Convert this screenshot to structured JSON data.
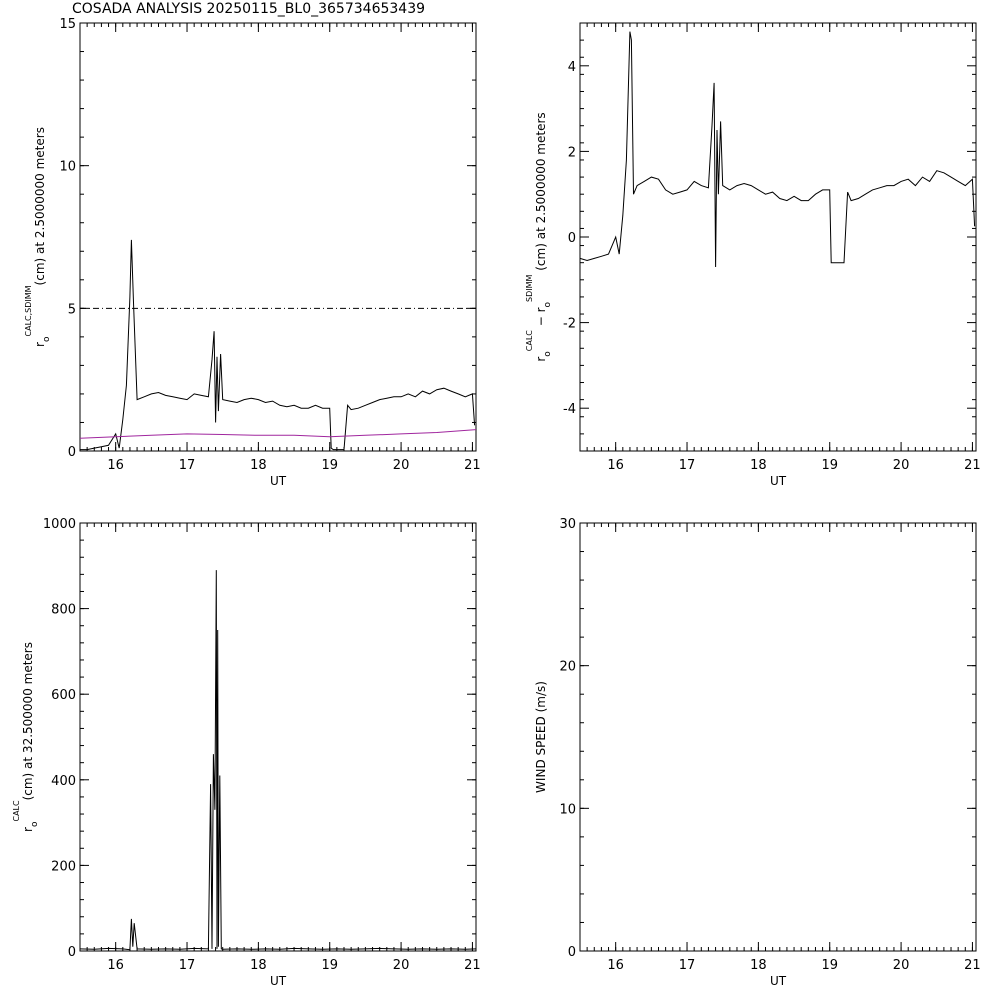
{
  "title": "COSADA ANALYSIS 20250115_BL0_365734653439",
  "colors": {
    "axis": "#000000",
    "series": "#000000",
    "secondary": "#a0269e",
    "background": "#ffffff"
  },
  "chart_data": [
    {
      "type": "line",
      "title": "",
      "xlabel": "UT",
      "ylabel_parts": [
        "r",
        "o",
        "CALC,SDIMM",
        "(cm)  at  2.5000000 meters"
      ],
      "xlim": [
        15.5,
        21.05
      ],
      "ylim": [
        0,
        15
      ],
      "xticks": [
        16,
        17,
        18,
        19,
        20,
        21
      ],
      "yticks": [
        0,
        5,
        10,
        15
      ],
      "grid": false,
      "reference_line": {
        "y": 5,
        "style": "dash-dot"
      },
      "series": [
        {
          "color": "#000000",
          "x": [
            15.5,
            15.6,
            15.7,
            15.8,
            15.9,
            16.0,
            16.05,
            16.1,
            16.15,
            16.2,
            16.22,
            16.25,
            16.3,
            16.4,
            16.5,
            16.6,
            16.7,
            16.8,
            16.9,
            17.0,
            17.1,
            17.2,
            17.3,
            17.35,
            17.38,
            17.4,
            17.42,
            17.44,
            17.47,
            17.5,
            17.6,
            17.7,
            17.8,
            17.9,
            18.0,
            18.1,
            18.2,
            18.3,
            18.4,
            18.5,
            18.6,
            18.7,
            18.8,
            18.9,
            19.0,
            19.02,
            19.05,
            19.1,
            19.2,
            19.25,
            19.3,
            19.4,
            19.5,
            19.6,
            19.7,
            19.8,
            19.9,
            20.0,
            20.1,
            20.2,
            20.3,
            20.4,
            20.5,
            20.6,
            20.7,
            20.8,
            20.9,
            21.0,
            21.03
          ],
          "values": [
            0.05,
            0.05,
            0.1,
            0.15,
            0.2,
            0.6,
            0.1,
            1.1,
            2.3,
            5.4,
            7.4,
            5.2,
            1.8,
            1.9,
            2.0,
            2.05,
            1.95,
            1.9,
            1.85,
            1.8,
            2.0,
            1.95,
            1.9,
            3.2,
            4.2,
            1.0,
            3.3,
            1.4,
            3.4,
            1.8,
            1.75,
            1.7,
            1.8,
            1.85,
            1.8,
            1.7,
            1.75,
            1.6,
            1.55,
            1.6,
            1.5,
            1.5,
            1.6,
            1.5,
            1.5,
            0.1,
            0.05,
            0.05,
            0.05,
            1.6,
            1.45,
            1.5,
            1.6,
            1.7,
            1.8,
            1.85,
            1.9,
            1.9,
            2.0,
            1.9,
            2.1,
            2.0,
            2.15,
            2.2,
            2.1,
            2.0,
            1.9,
            2.0,
            0.9
          ]
        },
        {
          "color": "#a0269e",
          "x": [
            15.5,
            16.0,
            16.5,
            17.0,
            17.5,
            18.0,
            18.5,
            19.0,
            19.5,
            20.0,
            20.5,
            21.05
          ],
          "values": [
            0.45,
            0.5,
            0.55,
            0.6,
            0.58,
            0.55,
            0.55,
            0.5,
            0.55,
            0.6,
            0.65,
            0.75
          ]
        }
      ]
    },
    {
      "type": "line",
      "title": "",
      "xlabel": "UT",
      "ylabel_parts": [
        "r",
        "o",
        "CALC",
        "  −  r",
        "o",
        "SDIMM",
        " (cm)  at  2.5000000 meters"
      ],
      "xlim": [
        15.5,
        21.05
      ],
      "ylim": [
        -5,
        5
      ],
      "xticks": [
        16,
        17,
        18,
        19,
        20,
        21
      ],
      "yticks": [
        -4,
        -2,
        0,
        2,
        4
      ],
      "grid": false,
      "series": [
        {
          "color": "#000000",
          "x": [
            15.5,
            15.6,
            15.7,
            15.8,
            15.9,
            16.0,
            16.05,
            16.1,
            16.15,
            16.2,
            16.22,
            16.25,
            16.3,
            16.4,
            16.5,
            16.6,
            16.7,
            16.8,
            16.9,
            17.0,
            17.1,
            17.2,
            17.3,
            17.35,
            17.38,
            17.4,
            17.42,
            17.44,
            17.47,
            17.5,
            17.6,
            17.7,
            17.8,
            17.9,
            18.0,
            18.1,
            18.2,
            18.3,
            18.4,
            18.5,
            18.6,
            18.7,
            18.8,
            18.9,
            19.0,
            19.02,
            19.05,
            19.1,
            19.2,
            19.25,
            19.3,
            19.4,
            19.5,
            19.6,
            19.7,
            19.8,
            19.9,
            20.0,
            20.1,
            20.2,
            20.3,
            20.4,
            20.5,
            20.6,
            20.7,
            20.8,
            20.9,
            21.0,
            21.03
          ],
          "values": [
            -0.5,
            -0.55,
            -0.5,
            -0.45,
            -0.4,
            0.0,
            -0.4,
            0.5,
            1.8,
            4.8,
            4.6,
            1.0,
            1.2,
            1.3,
            1.4,
            1.35,
            1.1,
            1.0,
            1.05,
            1.1,
            1.3,
            1.2,
            1.15,
            2.6,
            3.6,
            -0.7,
            2.5,
            1.0,
            2.7,
            1.2,
            1.1,
            1.2,
            1.25,
            1.2,
            1.1,
            1.0,
            1.05,
            0.9,
            0.85,
            0.95,
            0.85,
            0.85,
            1.0,
            1.1,
            1.1,
            -0.6,
            -0.6,
            -0.6,
            -0.6,
            1.05,
            0.85,
            0.9,
            1.0,
            1.1,
            1.15,
            1.2,
            1.2,
            1.3,
            1.35,
            1.2,
            1.4,
            1.3,
            1.55,
            1.5,
            1.4,
            1.3,
            1.2,
            1.35,
            0.25
          ]
        }
      ]
    },
    {
      "type": "line",
      "title": "",
      "xlabel": "UT",
      "ylabel_parts": [
        "r",
        "o",
        "CALC",
        "(cm) at 32.500000 meters"
      ],
      "xlim": [
        15.5,
        21.05
      ],
      "ylim": [
        0,
        1000
      ],
      "xticks": [
        16,
        17,
        18,
        19,
        20,
        21
      ],
      "yticks": [
        0,
        200,
        400,
        600,
        800,
        1000
      ],
      "grid": false,
      "series": [
        {
          "color": "#000000",
          "x": [
            15.5,
            15.7,
            15.9,
            16.1,
            16.2,
            16.22,
            16.24,
            16.26,
            16.3,
            16.5,
            16.7,
            16.9,
            17.1,
            17.3,
            17.33,
            17.35,
            17.37,
            17.39,
            17.41,
            17.42,
            17.43,
            17.44,
            17.46,
            17.48,
            17.5,
            17.7,
            17.9,
            18.1,
            18.3,
            18.5,
            18.7,
            18.9,
            19.1,
            19.3,
            19.5,
            19.7,
            19.9,
            20.1,
            20.3,
            20.5,
            20.7,
            20.9,
            21.05
          ],
          "values": [
            5,
            4,
            6,
            5,
            3,
            75,
            10,
            65,
            5,
            4,
            5,
            4,
            6,
            5,
            390,
            5,
            460,
            330,
            890,
            5,
            750,
            10,
            410,
            5,
            4,
            5,
            4,
            5,
            4,
            6,
            5,
            4,
            5,
            4,
            5,
            6,
            5,
            4,
            5,
            4,
            5,
            4,
            5
          ]
        }
      ]
    },
    {
      "type": "line",
      "title": "",
      "xlabel": "UT",
      "ylabel_parts": [
        "WIND SPEED (m/s)"
      ],
      "xlim": [
        15.5,
        21.05
      ],
      "ylim": [
        0,
        30
      ],
      "xticks": [
        16,
        17,
        18,
        19,
        20,
        21
      ],
      "yticks": [
        0,
        10,
        20,
        30
      ],
      "grid": false,
      "series": []
    }
  ]
}
